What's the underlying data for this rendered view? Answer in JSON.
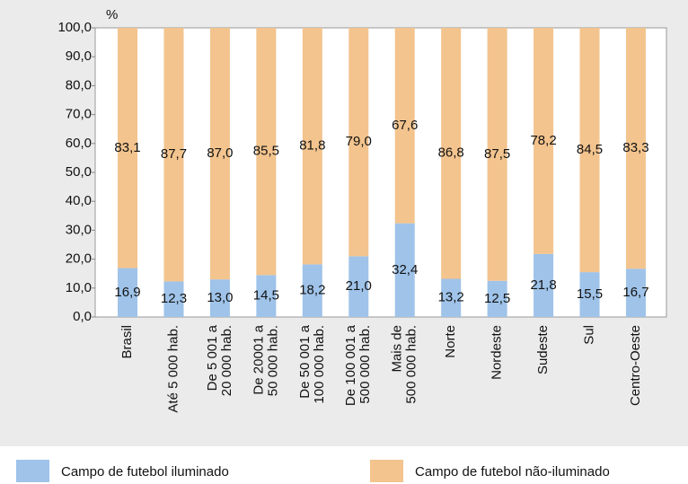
{
  "chart_data": {
    "type": "stacked_bar",
    "ylabel": "%",
    "categories": [
      [
        "Brasil"
      ],
      [
        "Até 5 000 hab."
      ],
      [
        "De 5 001 a",
        "20 000 hab."
      ],
      [
        "De 20001 a",
        "50 000 hab."
      ],
      [
        "De 50 001 a",
        "100 000 hab."
      ],
      [
        "De 100 001 a",
        "500 000 hab."
      ],
      [
        "Mais de",
        "500 000 hab."
      ],
      [
        "Norte"
      ],
      [
        "Nordeste"
      ],
      [
        "Sudeste"
      ],
      [
        "Sul"
      ],
      [
        "Centro-Oeste"
      ]
    ],
    "series": [
      {
        "name": "Campo de futebol iluminado",
        "color": "#9fc3e9",
        "values": [
          16.9,
          12.3,
          13.0,
          14.5,
          18.2,
          21.0,
          32.4,
          13.2,
          12.5,
          21.8,
          15.5,
          16.7
        ],
        "value_labels": [
          "16,9",
          "12,3",
          "13,0",
          "14,5",
          "18,2",
          "21,0",
          "32,4",
          "13,2",
          "12,5",
          "21,8",
          "15,5",
          "16,7"
        ]
      },
      {
        "name": "Campo de futebol não-iluminado",
        "color": "#f3c48e",
        "values": [
          83.1,
          87.7,
          87.0,
          85.5,
          81.8,
          79.0,
          67.6,
          86.8,
          87.5,
          78.2,
          84.5,
          83.3
        ],
        "value_labels": [
          "83,1",
          "87,7",
          "87,0",
          "85,5",
          "81,8",
          "79,0",
          "67,6",
          "86,8",
          "87,5",
          "78,2",
          "84,5",
          "83,3"
        ]
      }
    ],
    "ylim": [
      0,
      100
    ],
    "yticks": [
      {
        "value": 0,
        "label": "0,0"
      },
      {
        "value": 10,
        "label": "10,0"
      },
      {
        "value": 20,
        "label": "20,0"
      },
      {
        "value": 30,
        "label": "30,0"
      },
      {
        "value": 40,
        "label": "40,0"
      },
      {
        "value": 50,
        "label": "50,0"
      },
      {
        "value": 60,
        "label": "60,0"
      },
      {
        "value": 70,
        "label": "70,0"
      },
      {
        "value": 80,
        "label": "80,0"
      },
      {
        "value": 90,
        "label": "90,0"
      },
      {
        "value": 100,
        "label": "100,0"
      }
    ]
  }
}
